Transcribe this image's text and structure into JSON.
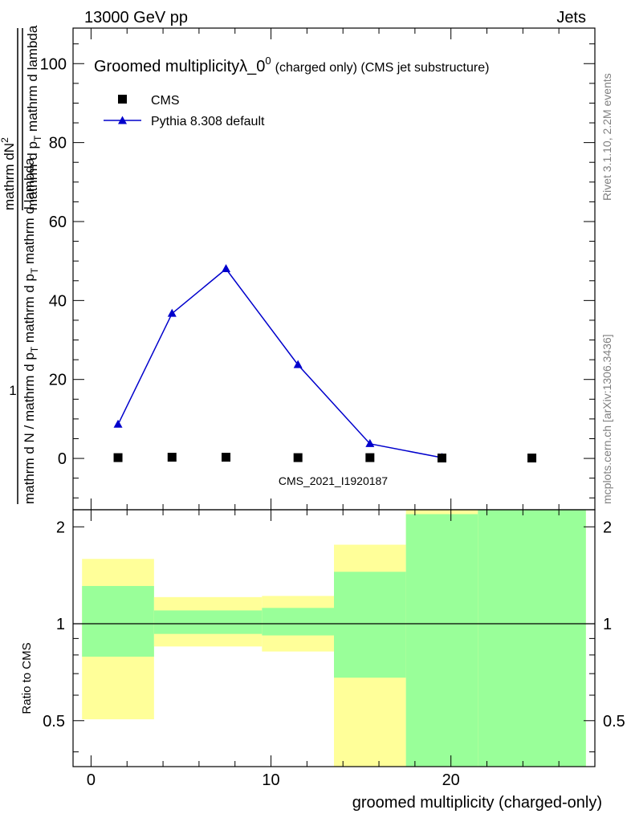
{
  "header": {
    "left": "13000 GeV pp",
    "right": "Jets"
  },
  "side": {
    "rivet": "Rivet 3.1.10,  2.2M events",
    "mcplots": "mcplots.cern.ch [arXiv:1306.3436]"
  },
  "watermark": "CMS_2021_I1920187",
  "chart_data": [
    {
      "type": "scatter",
      "title_main": "Groomed multiplicity",
      "title_lambda": "λ_0",
      "title_sup": "0",
      "title_paren": "(charged only) (CMS jet substructure)",
      "ylabel_one": "1",
      "ylabel_num": "mathrm dN",
      "ylabel_num_sup": "2",
      "ylabel_num_den": "mathrm d p",
      "ylabel_num_den_sub": "T",
      "ylabel_num_den_rest": " mathrm d lambda",
      "ylabel_den_a": "mathrm d N / mathrm d p",
      "ylabel_den_sub": "T",
      "ylabel_den_b": " mathrm d p",
      "ylabel_den_sub2": "T",
      "ylabel_den_c": " mathrm d lambda",
      "xlim": [
        -1,
        28
      ],
      "ylim": [
        -13,
        109
      ],
      "yticks": [
        0,
        20,
        40,
        60,
        80,
        100
      ],
      "yticklabels": [
        "0",
        "20",
        "40",
        "60",
        "80",
        "100"
      ],
      "legend_position": "top-left",
      "series": [
        {
          "name": "CMS",
          "marker": "square",
          "color": "#000000",
          "x": [
            1.5,
            4.5,
            7.5,
            11.5,
            15.5,
            19.5,
            24.5
          ],
          "y": [
            0.2,
            0.3,
            0.3,
            0.2,
            0.2,
            0.1,
            0.1
          ]
        },
        {
          "name": "Pythia 8.308 default",
          "marker": "triangle",
          "color": "#0000cc",
          "x": [
            1.5,
            4.5,
            7.5,
            11.5,
            15.5,
            19.5
          ],
          "y": [
            8.6,
            36.7,
            48.0,
            23.7,
            3.7,
            0.2
          ]
        }
      ]
    },
    {
      "type": "area",
      "ylabel": "Ratio to CMS",
      "xlabel": "groomed multiplicity (charged-only)",
      "xlim": [
        -1,
        28
      ],
      "ylim": [
        0.36,
        2.26
      ],
      "xticks": [
        0,
        10,
        20
      ],
      "xticklabels": [
        "0",
        "10",
        "20"
      ],
      "yticks": [
        0.5,
        1,
        2
      ],
      "yticklabels": [
        "0.5",
        "1",
        "2"
      ],
      "bins": [
        {
          "lo": -0.5,
          "hi": 3.5,
          "yellow": [
            0.505,
            1.59
          ],
          "green": [
            0.79,
            1.31
          ]
        },
        {
          "lo": 3.5,
          "hi": 9.5,
          "yellow": [
            0.85,
            1.21
          ],
          "green": [
            0.93,
            1.1
          ]
        },
        {
          "lo": 9.5,
          "hi": 13.5,
          "yellow": [
            0.82,
            1.22
          ],
          "green": [
            0.92,
            1.12
          ]
        },
        {
          "lo": 13.5,
          "hi": 17.5,
          "yellow": [
            0.36,
            1.76
          ],
          "green": [
            0.68,
            1.45
          ]
        },
        {
          "lo": 17.5,
          "hi": 21.5,
          "yellow": [
            0.36,
            2.26
          ],
          "green": [
            0.36,
            2.19
          ]
        },
        {
          "lo": 21.5,
          "hi": 27.5,
          "yellow": [
            0.36,
            2.26
          ],
          "green": [
            0.36,
            2.26
          ]
        }
      ]
    }
  ]
}
